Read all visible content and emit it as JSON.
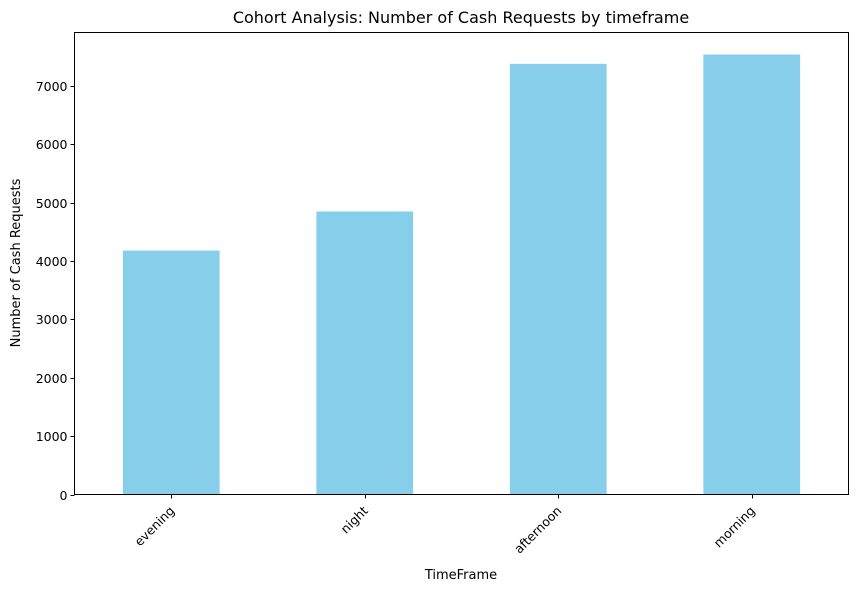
{
  "chart_data": {
    "type": "bar",
    "title": "Cohort Analysis: Number of Cash Requests by timeframe",
    "xlabel": "TimeFrame",
    "ylabel": "Number of Cash Requests",
    "categories": [
      "evening",
      "night",
      "afternoon",
      "morning"
    ],
    "values": [
      4180,
      4850,
      7380,
      7540
    ],
    "ylim": [
      0,
      7917
    ],
    "yticks": [
      0,
      1000,
      2000,
      3000,
      4000,
      5000,
      6000,
      7000
    ],
    "xtick_rotation": 45,
    "bar_color": "#87ceeb",
    "grid": false,
    "legend": "none"
  }
}
